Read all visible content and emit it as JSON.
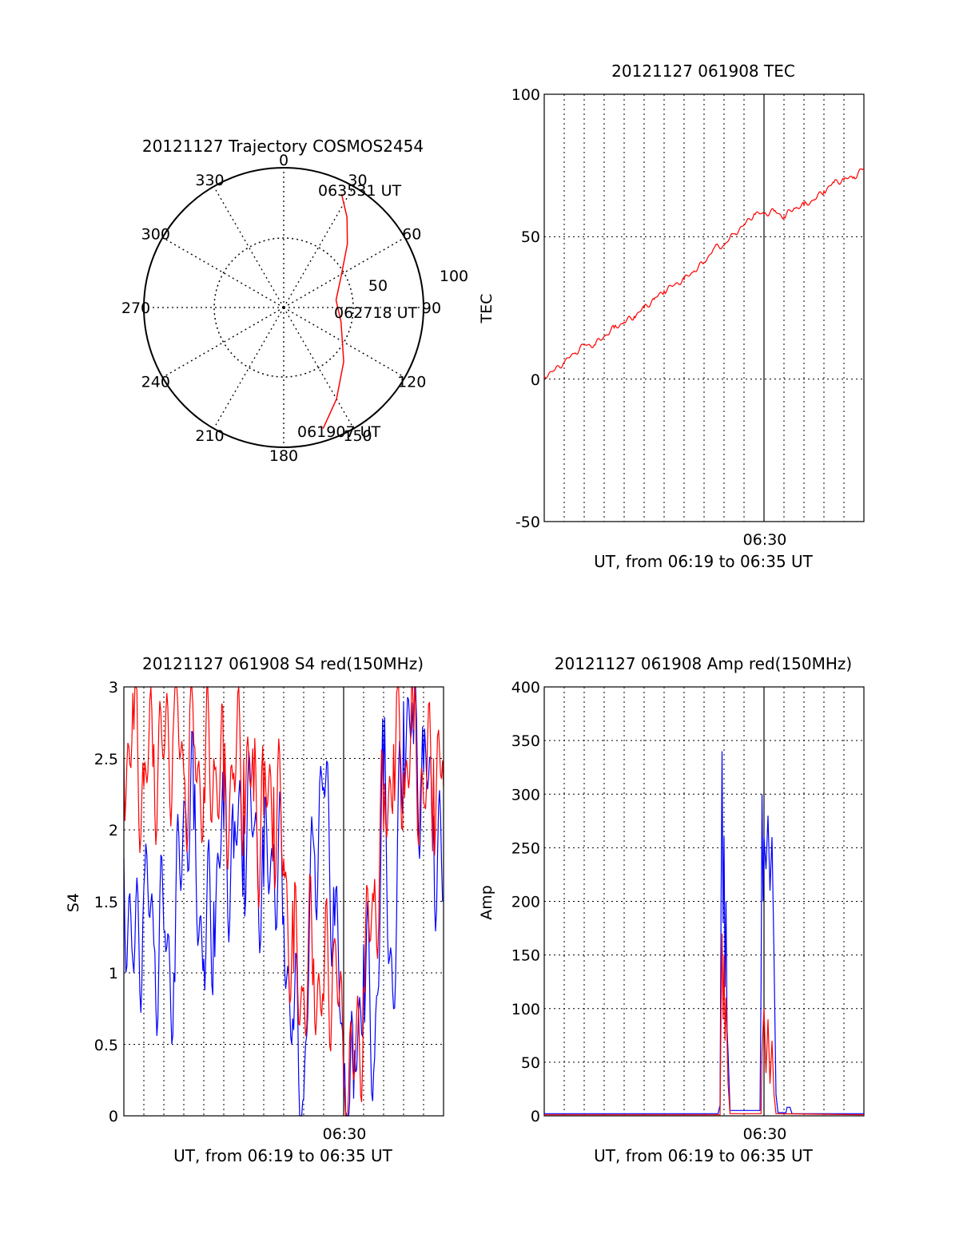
{
  "colors": {
    "red_series": "#ff0000",
    "blue_series": "#0000ff",
    "grid": "#000000",
    "background": "#ffffff"
  },
  "chart_data": [
    {
      "type": "polar",
      "title": "20121127 Trajectory COSMOS2454",
      "azimuth_labels": [
        "0",
        "30",
        "60",
        "90",
        "120",
        "150",
        "180",
        "210",
        "240",
        "270",
        "300",
        "330"
      ],
      "radial_labels": [
        "50",
        "100"
      ],
      "series": [
        {
          "color": "red",
          "points": [
            {
              "az": 162,
              "el": 8
            },
            {
              "az": 150,
              "el": 22
            },
            {
              "az": 132,
              "el": 38
            },
            {
              "az": 104,
              "el": 52
            },
            {
              "az": 82,
              "el": 56
            },
            {
              "az": 60,
              "el": 47
            },
            {
              "az": 45,
              "el": 32
            },
            {
              "az": 35,
              "el": 19
            },
            {
              "az": 27,
              "el": 8
            }
          ]
        }
      ],
      "annotations": [
        "063531 UT",
        "062718 UT",
        "061907 UT"
      ]
    },
    {
      "type": "line",
      "title": "20121127 061908 TEC",
      "ylabel": "TEC",
      "xlabel": "UT, from 06:19 to 06:35 UT",
      "x_tick_label": "06:30",
      "y_ticks": [
        "100",
        "50",
        "0",
        "-50"
      ],
      "ylim": [
        -50,
        100
      ],
      "grid": true,
      "series": [
        {
          "color": "red",
          "points": [
            {
              "t": 0,
              "v": 1
            },
            {
              "t": 0.5,
              "v": 3
            },
            {
              "t": 1,
              "v": 6
            },
            {
              "t": 1.5,
              "v": 9
            },
            {
              "t": 2,
              "v": 12
            },
            {
              "t": 2.5,
              "v": 12
            },
            {
              "t": 3,
              "v": 15
            },
            {
              "t": 3.5,
              "v": 18
            },
            {
              "t": 4,
              "v": 20
            },
            {
              "t": 4.5,
              "v": 22
            },
            {
              "t": 5,
              "v": 25
            },
            {
              "t": 5.5,
              "v": 28
            },
            {
              "t": 6,
              "v": 31
            },
            {
              "t": 6.5,
              "v": 33
            },
            {
              "t": 7,
              "v": 35
            },
            {
              "t": 7.5,
              "v": 38
            },
            {
              "t": 8,
              "v": 41
            },
            {
              "t": 8.5,
              "v": 46
            },
            {
              "t": 9,
              "v": 47
            },
            {
              "t": 9.5,
              "v": 51
            },
            {
              "t": 10,
              "v": 54
            },
            {
              "t": 10.5,
              "v": 58
            },
            {
              "t": 11,
              "v": 58
            },
            {
              "t": 11.5,
              "v": 59
            },
            {
              "t": 12,
              "v": 57
            },
            {
              "t": 12.5,
              "v": 60
            },
            {
              "t": 13,
              "v": 61
            },
            {
              "t": 13.5,
              "v": 63
            },
            {
              "t": 14,
              "v": 66
            },
            {
              "t": 14.5,
              "v": 69
            },
            {
              "t": 15,
              "v": 70
            },
            {
              "t": 15.5,
              "v": 71
            },
            {
              "t": 16,
              "v": 74
            }
          ]
        }
      ]
    },
    {
      "type": "line",
      "title": "20121127 061908 S4 red(150MHz)",
      "ylabel": "S4",
      "xlabel": "UT, from 06:19 to 06:35 UT",
      "x_tick_label": "06:30",
      "y_ticks": [
        "3",
        "2.5",
        "2",
        "1.5",
        "1",
        "0.5",
        "0"
      ],
      "ylim": [
        0,
        3
      ],
      "grid": true,
      "series": [
        {
          "color": "blue",
          "points": [
            {
              "t": 0,
              "v": 1.8
            },
            {
              "t": 0.5,
              "v": 1.0
            },
            {
              "t": 1,
              "v": 1.6
            },
            {
              "t": 1.5,
              "v": 1.2
            },
            {
              "t": 2,
              "v": 1.3
            },
            {
              "t": 2.5,
              "v": 1.0
            },
            {
              "t": 3,
              "v": 2.2
            },
            {
              "t": 3.5,
              "v": 2.0
            },
            {
              "t": 4,
              "v": 1.1
            },
            {
              "t": 4.5,
              "v": 1.5
            },
            {
              "t": 5,
              "v": 2.0
            },
            {
              "t": 5.5,
              "v": 1.8
            },
            {
              "t": 6,
              "v": 2.1
            },
            {
              "t": 6.5,
              "v": 2.0
            },
            {
              "t": 7,
              "v": 1.6
            },
            {
              "t": 7.5,
              "v": 1.9
            },
            {
              "t": 8,
              "v": 1.4
            },
            {
              "t": 8.5,
              "v": 0.6
            },
            {
              "t": 9,
              "v": 0.12
            },
            {
              "t": 9.5,
              "v": 1.9
            },
            {
              "t": 10,
              "v": 2.3
            },
            {
              "t": 10.5,
              "v": 1.6
            },
            {
              "t": 11,
              "v": 0.2
            },
            {
              "t": 11.5,
              "v": 0.12
            },
            {
              "t": 12,
              "v": 1.2
            },
            {
              "t": 12.5,
              "v": 0.3
            },
            {
              "t": 13,
              "v": 2.3
            },
            {
              "t": 13.5,
              "v": 0.75
            },
            {
              "t": 14,
              "v": 2.9
            },
            {
              "t": 14.5,
              "v": 2.6
            },
            {
              "t": 15,
              "v": 2.4
            },
            {
              "t": 15.5,
              "v": 2.1
            },
            {
              "t": 16,
              "v": 1.5
            }
          ]
        },
        {
          "color": "red",
          "points": [
            {
              "t": 0,
              "v": 2.5
            },
            {
              "t": 0.5,
              "v": 2.7
            },
            {
              "t": 1,
              "v": 2.3
            },
            {
              "t": 1.5,
              "v": 2.6
            },
            {
              "t": 2,
              "v": 2.5
            },
            {
              "t": 2.5,
              "v": 2.8
            },
            {
              "t": 3,
              "v": 2.4
            },
            {
              "t": 3.5,
              "v": 2.6
            },
            {
              "t": 4,
              "v": 2.3
            },
            {
              "t": 4.5,
              "v": 2.5
            },
            {
              "t": 5,
              "v": 2.2
            },
            {
              "t": 5.5,
              "v": 2.4
            },
            {
              "t": 6,
              "v": 2.5
            },
            {
              "t": 6.5,
              "v": 2.2
            },
            {
              "t": 7,
              "v": 2.1
            },
            {
              "t": 7.5,
              "v": 2.3
            },
            {
              "t": 8,
              "v": 1.8
            },
            {
              "t": 8.5,
              "v": 1.0
            },
            {
              "t": 9,
              "v": 0.9
            },
            {
              "t": 9.5,
              "v": 1.1
            },
            {
              "t": 10,
              "v": 0.8
            },
            {
              "t": 10.5,
              "v": 1.2
            },
            {
              "t": 11,
              "v": 0.3
            },
            {
              "t": 11.5,
              "v": 0.25
            },
            {
              "t": 12,
              "v": 0.9
            },
            {
              "t": 12.5,
              "v": 1.5
            },
            {
              "t": 13,
              "v": 2.0
            },
            {
              "t": 13.5,
              "v": 2.6
            },
            {
              "t": 14,
              "v": 2.4
            },
            {
              "t": 14.5,
              "v": 2.7
            },
            {
              "t": 15,
              "v": 2.2
            },
            {
              "t": 15.5,
              "v": 2.5
            },
            {
              "t": 16,
              "v": 2.3
            }
          ]
        }
      ]
    },
    {
      "type": "line",
      "title": "20121127 061908 Amp red(150MHz)",
      "ylabel": "Amp",
      "xlabel": "UT, from 06:19 to 06:35 UT",
      "x_tick_label": "06:30",
      "y_ticks": [
        "400",
        "350",
        "300",
        "250",
        "200",
        "150",
        "100",
        "50",
        "0"
      ],
      "ylim": [
        0,
        400
      ],
      "grid": true,
      "series": [
        {
          "color": "blue",
          "points": [
            {
              "t": 0,
              "v": 2
            },
            {
              "t": 8.7,
              "v": 2
            },
            {
              "t": 8.8,
              "v": 10
            },
            {
              "t": 8.85,
              "v": 200
            },
            {
              "t": 8.9,
              "v": 340
            },
            {
              "t": 8.95,
              "v": 180
            },
            {
              "t": 9.0,
              "v": 260
            },
            {
              "t": 9.05,
              "v": 120
            },
            {
              "t": 9.1,
              "v": 200
            },
            {
              "t": 9.15,
              "v": 80
            },
            {
              "t": 9.2,
              "v": 60
            },
            {
              "t": 9.3,
              "v": 5
            },
            {
              "t": 10.8,
              "v": 5
            },
            {
              "t": 10.85,
              "v": 120
            },
            {
              "t": 10.9,
              "v": 300
            },
            {
              "t": 10.95,
              "v": 200
            },
            {
              "t": 11.0,
              "v": 260
            },
            {
              "t": 11.1,
              "v": 230
            },
            {
              "t": 11.2,
              "v": 280
            },
            {
              "t": 11.3,
              "v": 210
            },
            {
              "t": 11.4,
              "v": 260
            },
            {
              "t": 11.5,
              "v": 150
            },
            {
              "t": 11.6,
              "v": 20
            },
            {
              "t": 11.7,
              "v": 3
            },
            {
              "t": 12.1,
              "v": 3
            },
            {
              "t": 12.15,
              "v": 8
            },
            {
              "t": 12.3,
              "v": 8
            },
            {
              "t": 12.4,
              "v": 2
            },
            {
              "t": 16,
              "v": 2
            }
          ]
        },
        {
          "color": "red",
          "points": [
            {
              "t": 0,
              "v": 1
            },
            {
              "t": 8.8,
              "v": 1
            },
            {
              "t": 8.85,
              "v": 100
            },
            {
              "t": 8.9,
              "v": 170
            },
            {
              "t": 8.95,
              "v": 90
            },
            {
              "t": 9.0,
              "v": 150
            },
            {
              "t": 9.05,
              "v": 70
            },
            {
              "t": 9.1,
              "v": 110
            },
            {
              "t": 9.2,
              "v": 30
            },
            {
              "t": 9.3,
              "v": 2
            },
            {
              "t": 10.85,
              "v": 2
            },
            {
              "t": 10.9,
              "v": 60
            },
            {
              "t": 11.0,
              "v": 100
            },
            {
              "t": 11.1,
              "v": 40
            },
            {
              "t": 11.2,
              "v": 90
            },
            {
              "t": 11.3,
              "v": 30
            },
            {
              "t": 11.4,
              "v": 70
            },
            {
              "t": 11.5,
              "v": 20
            },
            {
              "t": 11.6,
              "v": 2
            },
            {
              "t": 16,
              "v": 1
            }
          ]
        }
      ]
    }
  ]
}
